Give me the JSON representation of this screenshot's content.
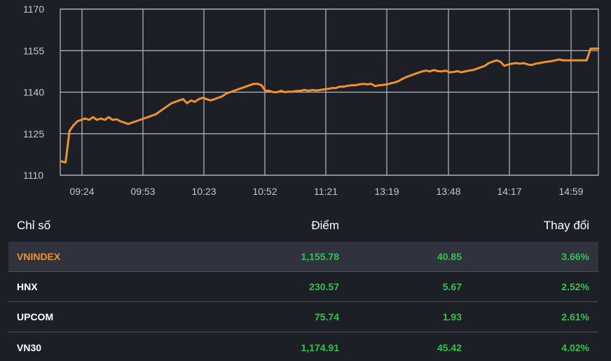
{
  "colors": {
    "background": "#1d1f27",
    "line": "#f0912f",
    "grid": "#b9bbc2",
    "positive": "#33c24d",
    "highlight_row": "#30333e"
  },
  "chart_data": {
    "type": "line",
    "title": "",
    "xlabel": "",
    "ylabel": "",
    "ylim": [
      1110,
      1170
    ],
    "y_ticks": [
      "1170",
      "1155",
      "1140",
      "1125",
      "1110"
    ],
    "x_ticks": [
      "09:24",
      "09:53",
      "10:23",
      "10:52",
      "11:21",
      "13:19",
      "13:48",
      "14:17",
      "14:59"
    ],
    "grid": true,
    "series": [
      {
        "values": [
          1115,
          1114.6,
          1126,
          1128,
          1129.5,
          1130,
          1130.5,
          1130,
          1131,
          1130,
          1130.5,
          1130,
          1131,
          1130,
          1130.2,
          1129.5,
          1129,
          1128.5,
          1129,
          1129.5,
          1130,
          1130.5,
          1131,
          1131.5,
          1132,
          1133,
          1134,
          1135,
          1136,
          1136.5,
          1137,
          1137.5,
          1136,
          1137,
          1136.5,
          1137.5,
          1138,
          1137.5,
          1137,
          1137.5,
          1138,
          1138.5,
          1139.5,
          1140,
          1140.5,
          1141,
          1141.5,
          1142,
          1142.5,
          1143,
          1143,
          1142.5,
          1140.5,
          1140.5,
          1140,
          1140,
          1140.5,
          1140,
          1140.2,
          1140.2,
          1140.4,
          1140.5,
          1140.8,
          1140.5,
          1140.8,
          1140.6,
          1140.8,
          1141,
          1141.2,
          1141.5,
          1141.5,
          1142,
          1142,
          1142.3,
          1142.5,
          1142.5,
          1142.8,
          1143,
          1142.8,
          1143,
          1142.2,
          1142.5,
          1142.6,
          1142.8,
          1143.2,
          1143.5,
          1144,
          1144.8,
          1145.5,
          1146,
          1146.5,
          1147,
          1147.5,
          1147.8,
          1147.5,
          1148,
          1147.6,
          1147.5,
          1147.8,
          1147.2,
          1147.3,
          1147.6,
          1147.2,
          1147.5,
          1147.8,
          1148,
          1148.5,
          1149,
          1149.5,
          1150.5,
          1151,
          1151.5,
          1151,
          1149.5,
          1150,
          1150.3,
          1150.5,
          1150.3,
          1150.5,
          1150,
          1149.8,
          1150.3,
          1150.5,
          1150.8,
          1151,
          1151.2,
          1151.5,
          1151.8,
          1151.5,
          1151.5,
          1151.5,
          1151.5,
          1151.5,
          1151.5,
          1151.5,
          1155.7,
          1155.78,
          1155.78
        ]
      }
    ]
  },
  "table": {
    "headers": {
      "name": "Chỉ số",
      "points": "Điểm",
      "pct": "Thay đổi"
    },
    "rows": [
      {
        "name": "VNINDEX",
        "points": "1,155.78",
        "change": "40.85",
        "pct": "3.66%"
      },
      {
        "name": "HNX",
        "points": "230.57",
        "change": "5.67",
        "pct": "2.52%"
      },
      {
        "name": "UPCOM",
        "points": "75.74",
        "change": "1.93",
        "pct": "2.61%"
      },
      {
        "name": "VN30",
        "points": "1,174.91",
        "change": "45.42",
        "pct": "4.02%"
      }
    ]
  }
}
